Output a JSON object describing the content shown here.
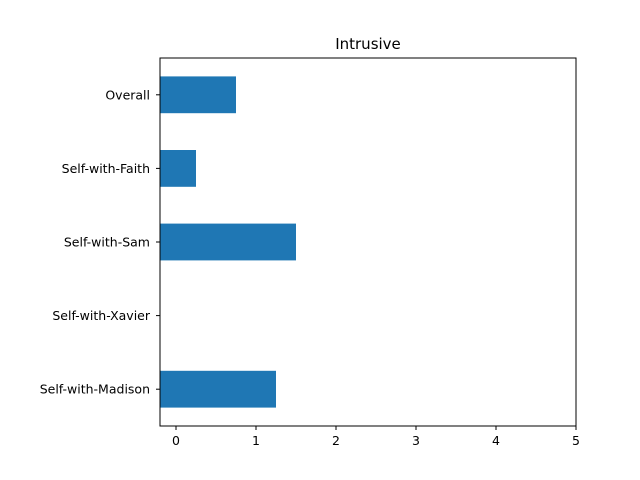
{
  "chart_data": {
    "type": "bar",
    "orientation": "horizontal",
    "title": "Intrusive",
    "xlabel": "",
    "ylabel": "",
    "categories": [
      "Overall",
      "Self-with-Faith",
      "Self-with-Sam",
      "Self-with-Xavier",
      "Self-with-Madison"
    ],
    "values": [
      0.75,
      0.25,
      1.5,
      0.0,
      1.25
    ],
    "xlim": [
      -0.2,
      5
    ],
    "xticks": [
      0,
      1,
      2,
      3,
      4,
      5
    ],
    "grid": false,
    "bar_color": "#1f77b4"
  }
}
